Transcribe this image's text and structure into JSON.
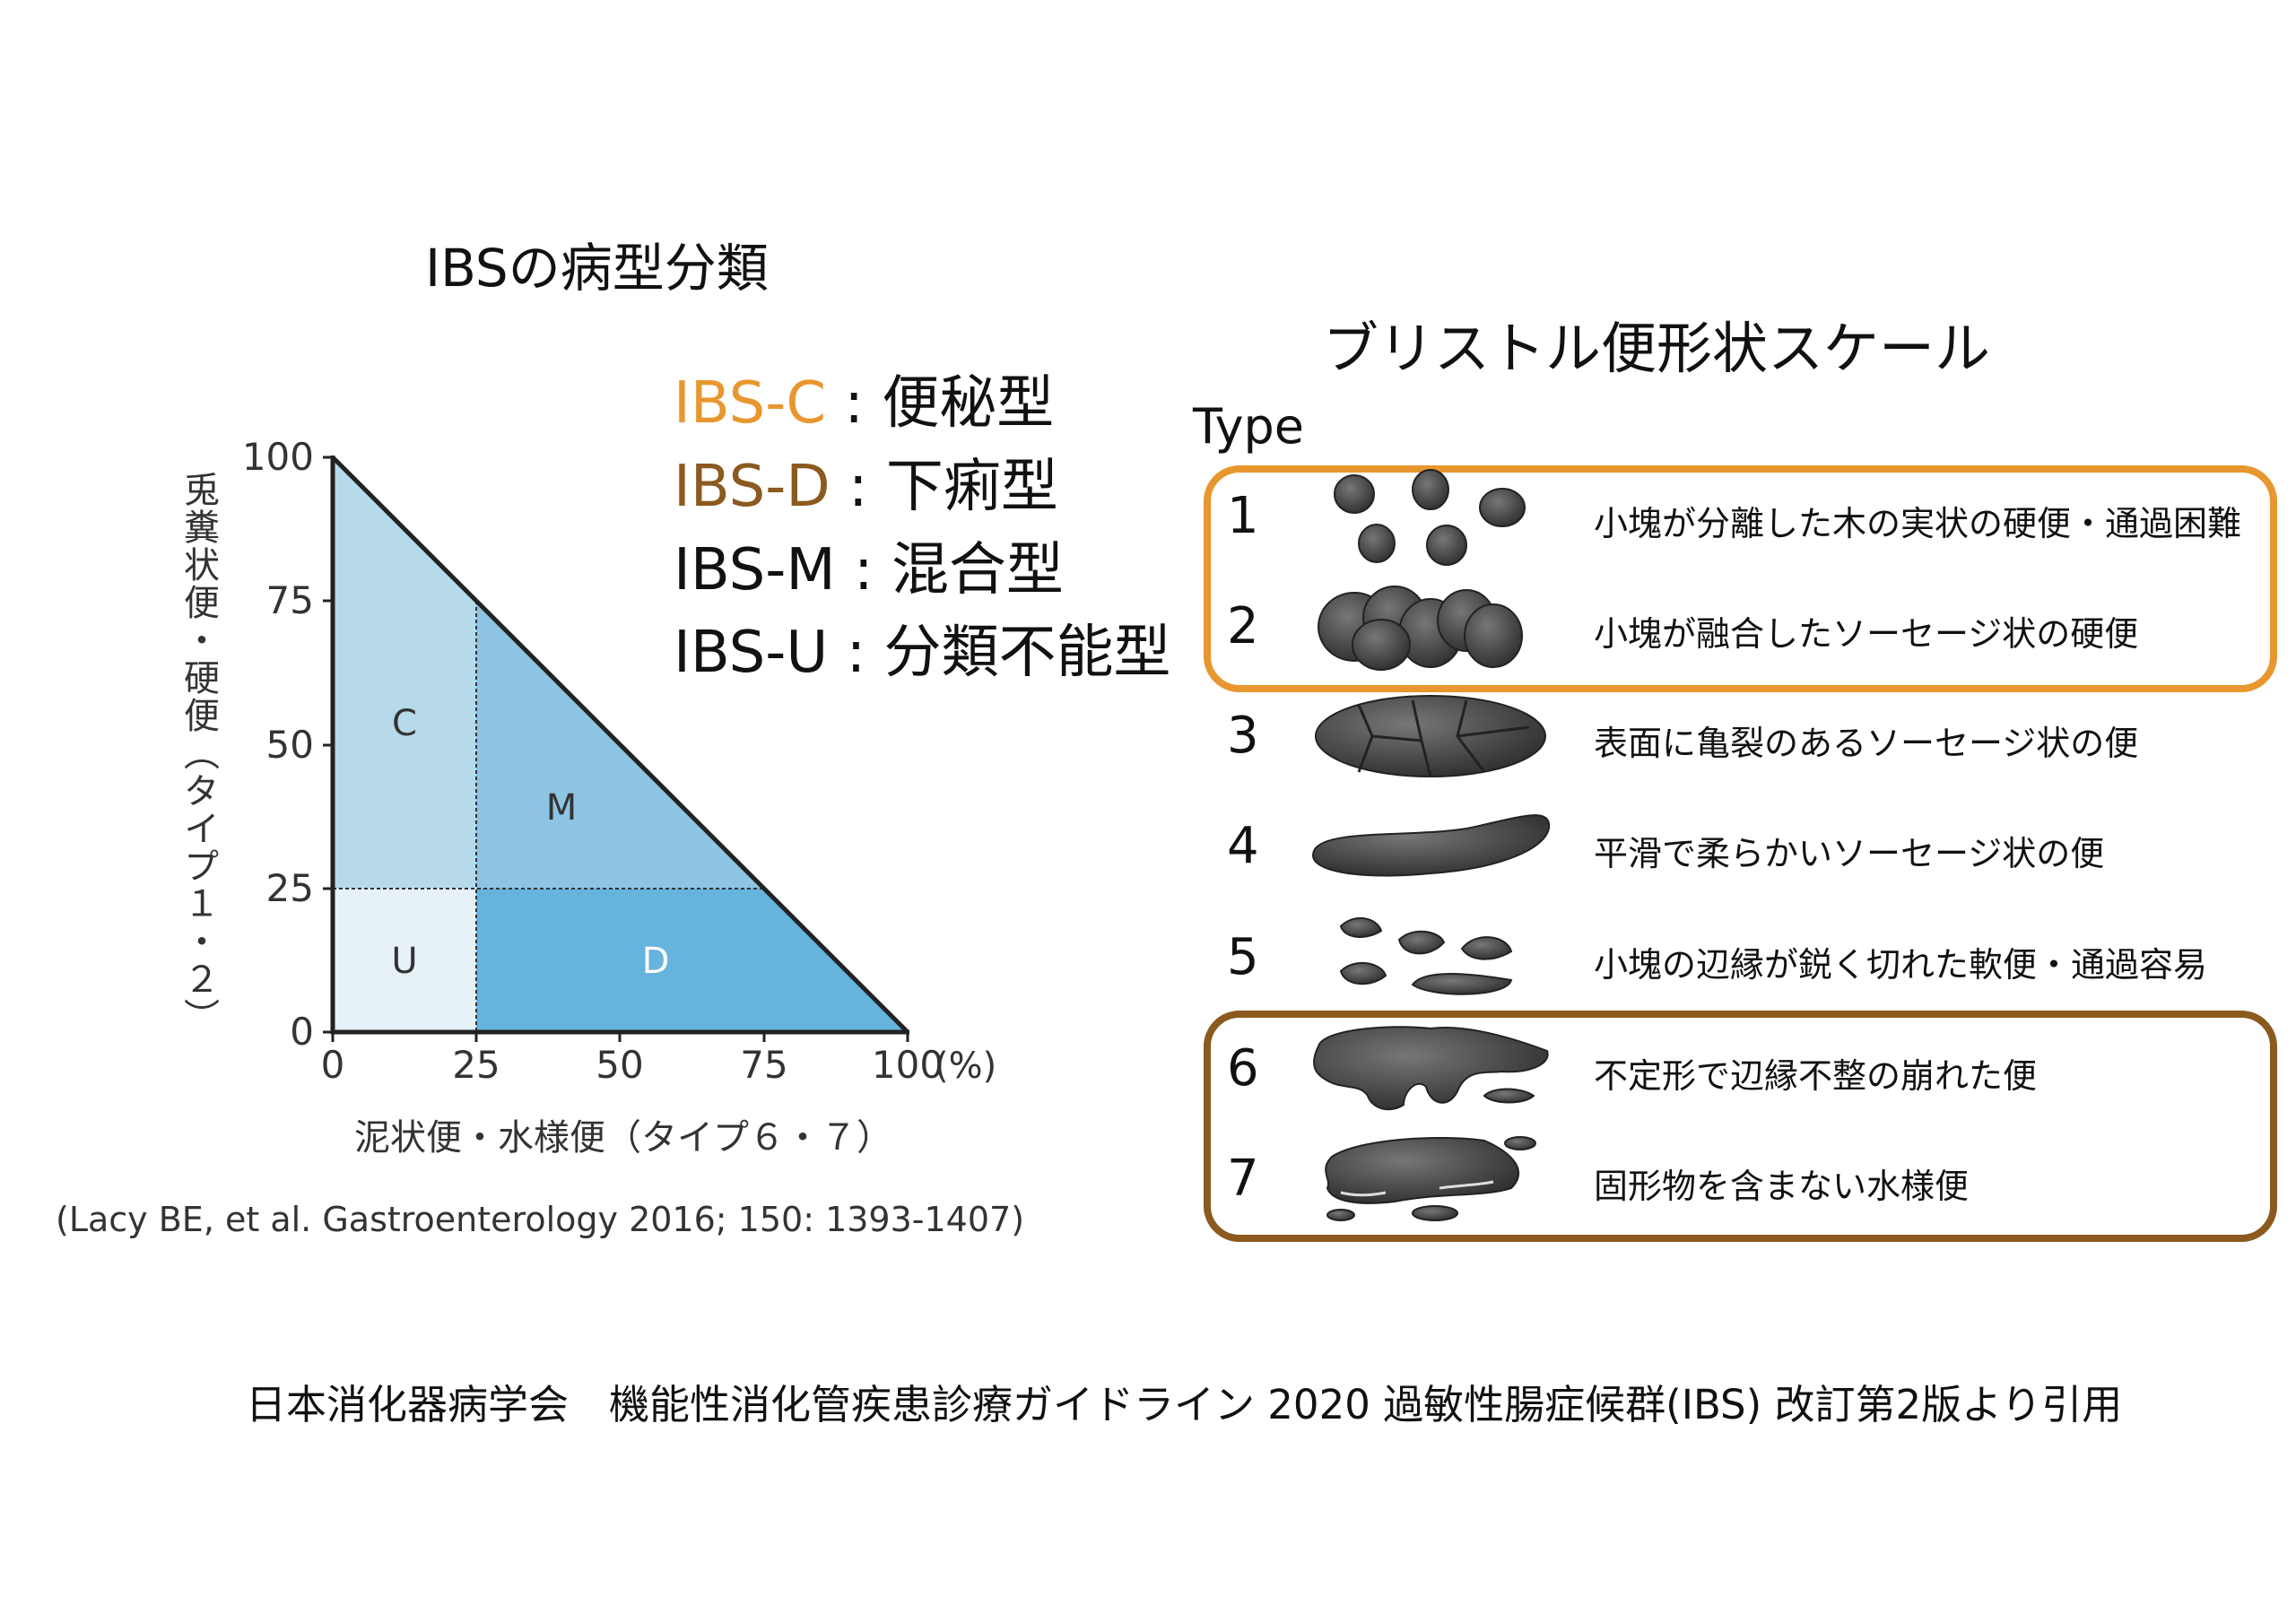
{
  "left": {
    "title": "IBSの病型分類",
    "legend": [
      {
        "code": "IBS-C",
        "sep": " : ",
        "label": "便秘型",
        "color": "#E8972F"
      },
      {
        "code": "IBS-D",
        "sep": " : ",
        "label": "下痢型",
        "color": "#8A5A1E"
      },
      {
        "code": "IBS-M",
        "sep": " : ",
        "label": "混合型",
        "color": "#111111"
      },
      {
        "code": "IBS-U",
        "sep": " : ",
        "label": "分類不能型",
        "color": "#111111"
      }
    ],
    "chart": {
      "y_label": "兎糞状便・硬便（タイプ１・２）",
      "x_label": "泥状便・水様便（タイプ６・７）",
      "x_ticks": [
        "0",
        "25",
        "50",
        "75",
        "100"
      ],
      "y_ticks": [
        "0",
        "25",
        "50",
        "75",
        "100"
      ],
      "x_unit": "(%)",
      "regions": {
        "C": "C",
        "M": "M",
        "U": "U",
        "D": "D"
      },
      "colors": {
        "C": "#B7DAEA",
        "M": "#8EC4E4",
        "D": "#66B4DE",
        "U": "#E6F1F8"
      }
    },
    "citation": "(Lacy BE, et al. Gastroenterology 2016; 150: 1393-1407)"
  },
  "right": {
    "title": "ブリストル便形状スケール",
    "type_label": "Type",
    "box_colors": {
      "constipation": "#E8972F",
      "diarrhea": "#8A5A1E"
    },
    "rows": [
      {
        "num": "1",
        "desc": "小塊が分離した木の実状の硬便・通過困難"
      },
      {
        "num": "2",
        "desc": "小塊が融合したソーセージ状の硬便"
      },
      {
        "num": "3",
        "desc": "表面に亀裂のあるソーセージ状の便"
      },
      {
        "num": "4",
        "desc": "平滑で柔らかいソーセージ状の便"
      },
      {
        "num": "5",
        "desc": "小塊の辺縁が鋭く切れた軟便・通過容易"
      },
      {
        "num": "6",
        "desc": "不定形で辺縁不整の崩れた便"
      },
      {
        "num": "7",
        "desc": "固形物を含まない水様便"
      }
    ]
  },
  "footer": "日本消化器病学会　機能性消化管疾患診療ガイドライン 2020 過敏性腸症候群(IBS) 改訂第2版より引用"
}
